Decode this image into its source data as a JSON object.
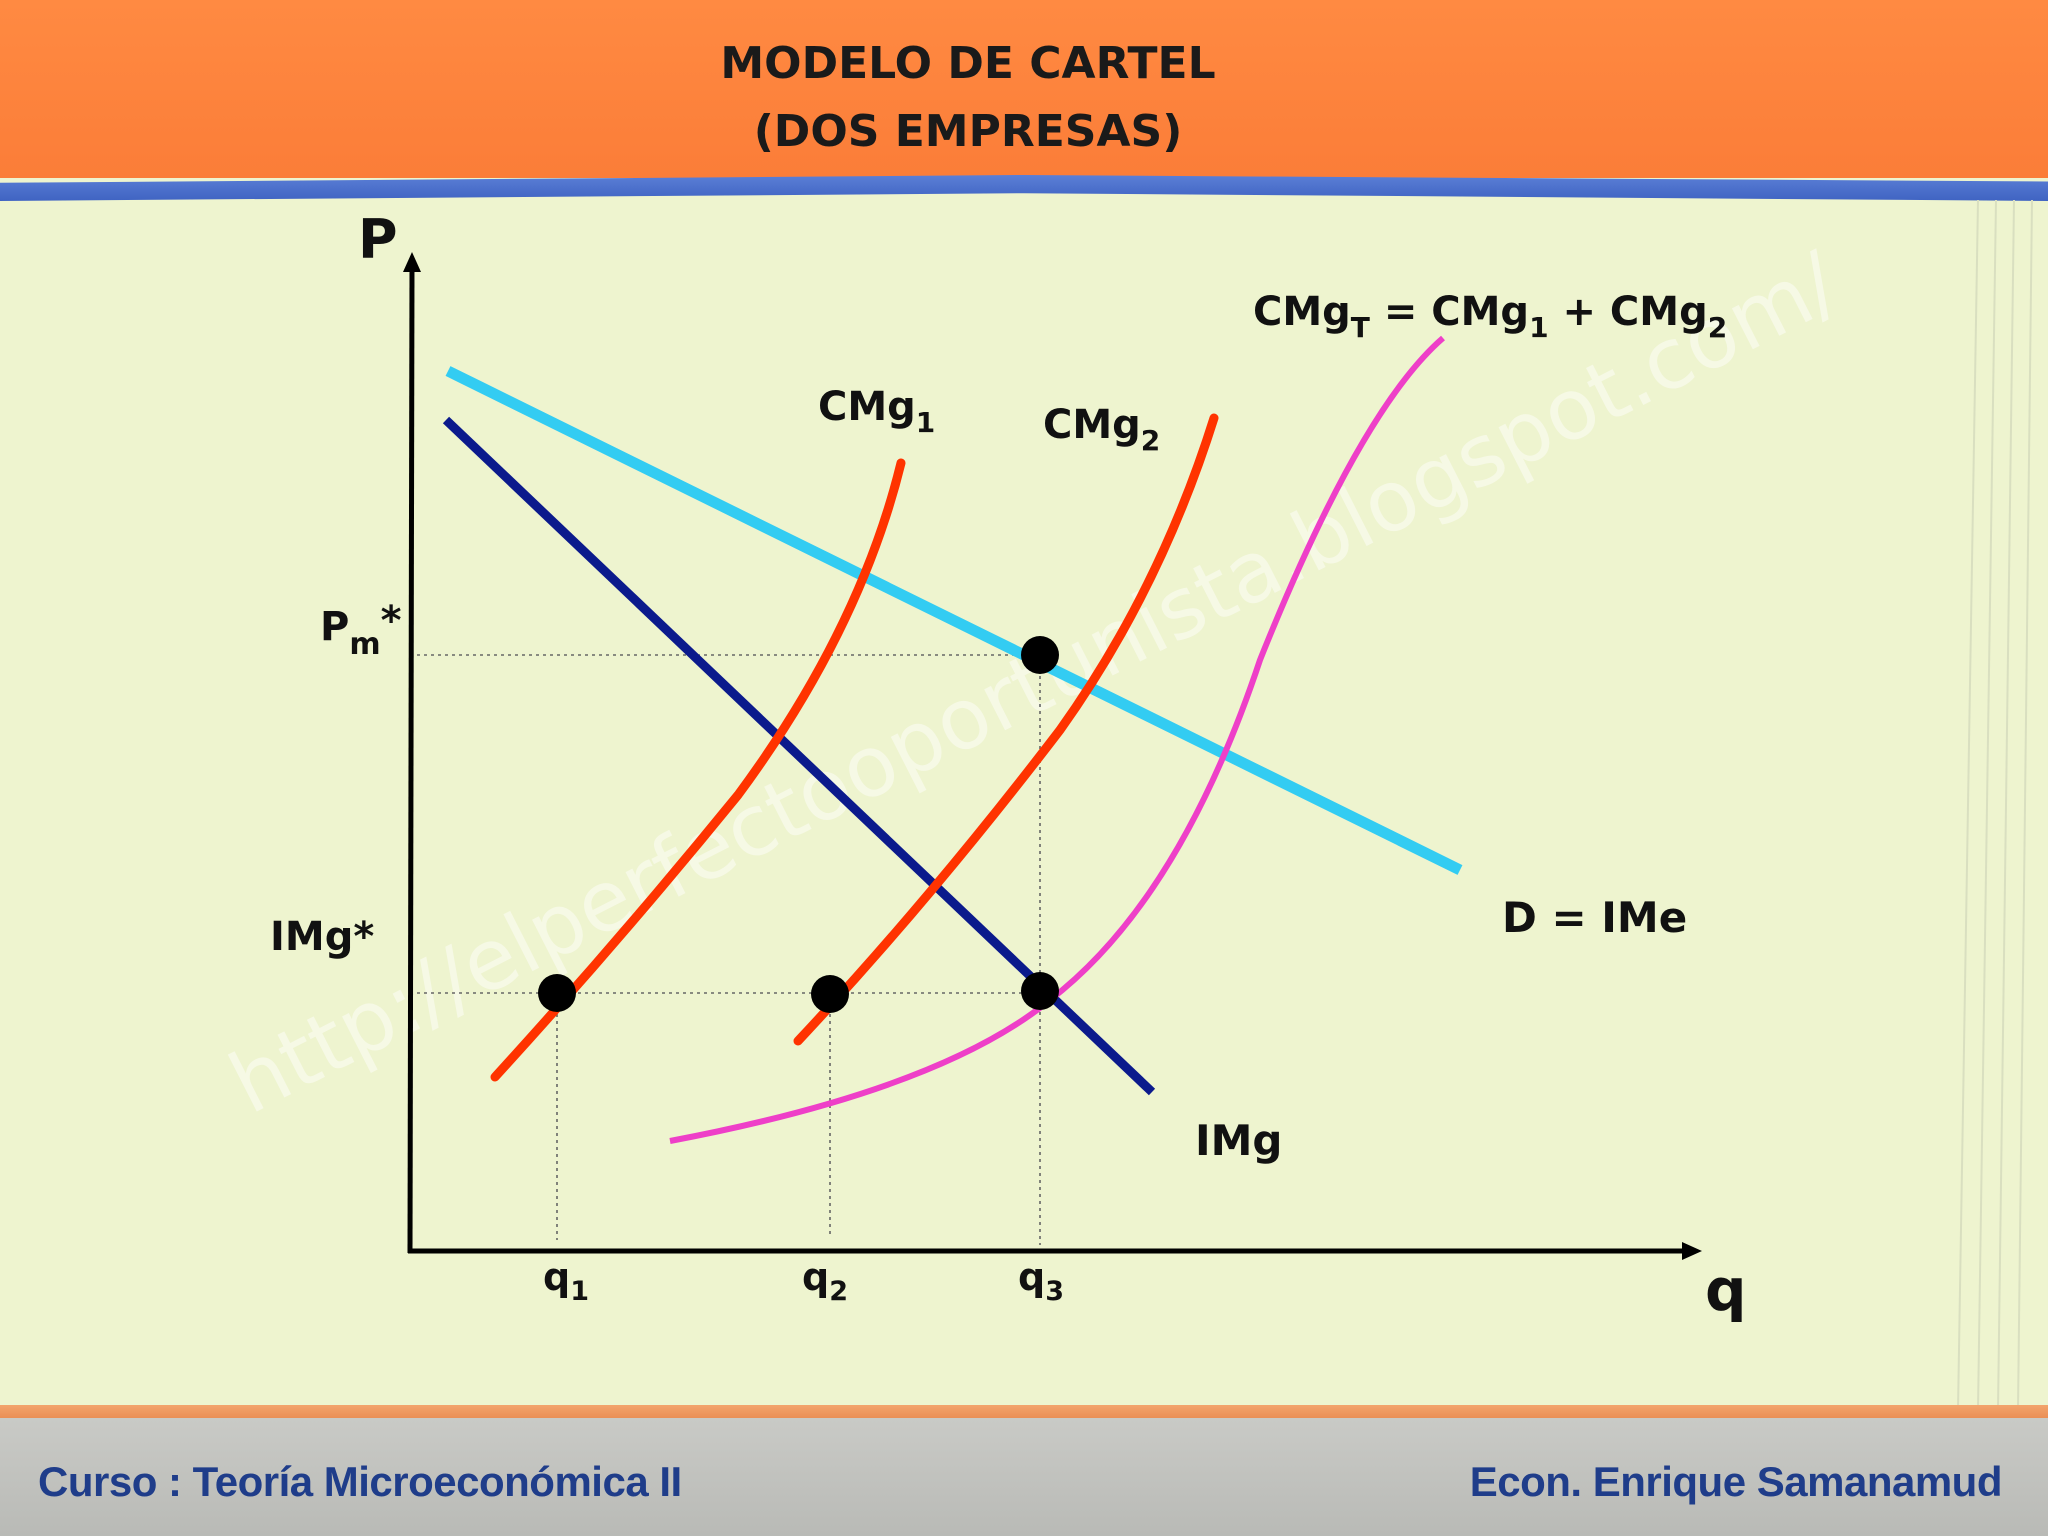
{
  "title": {
    "line1": "MODELO DE CARTEL",
    "line2": "(DOS EMPRESAS)"
  },
  "axes": {
    "y_label": "P",
    "x_label": "q"
  },
  "labels": {
    "pm_main": "P",
    "pm_sub": "m",
    "pm_star": "*",
    "img_star": "IMg*",
    "cmg1_main": "CMg",
    "cmg1_sub": "1",
    "cmg2_main": "CMg",
    "cmg2_sub": "2",
    "cmgt_a": "CMg",
    "cmgt_a_sub": "T",
    "cmgt_b": " = CMg",
    "cmgt_b_sub": "1",
    "cmgt_c": " + CMg",
    "cmgt_c_sub": "2",
    "demand": "D = IMe",
    "img": "IMg",
    "q1_main": "q",
    "q1_sub": "1",
    "q2_main": "q",
    "q2_sub": "2",
    "q3_main": "q",
    "q3_sub": "3"
  },
  "watermark": "http://elperfectooportunista.blogspot.com/",
  "footer": {
    "left": "Curso : Teoría Microeconómica II",
    "right": "Econ. Enrique Samanamud"
  },
  "colors": {
    "demand": "#33ccf2",
    "marginal_revenue": "#0b1a8c",
    "cmg_firms": "#ff3300",
    "cmg_total": "#ee3fc8",
    "header": "#fb7d38",
    "footer_text": "#1f3d8a"
  }
}
